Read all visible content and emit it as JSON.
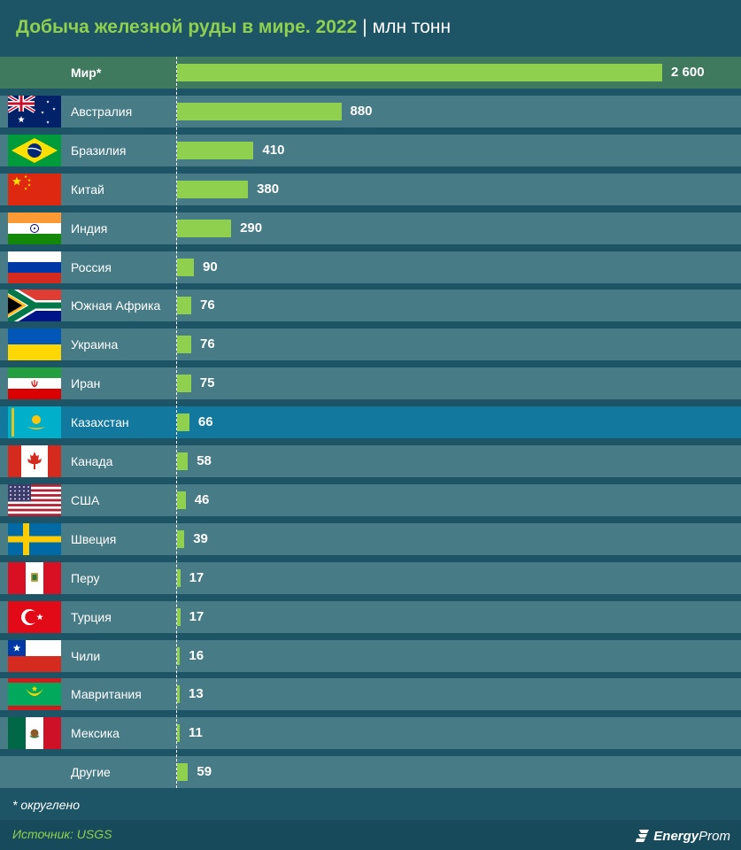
{
  "header": {
    "title": "Добыча железной руды в мире. 2022",
    "separator": "|",
    "unit": "млн тонн"
  },
  "colors": {
    "background": "#1d5566",
    "row": "#477b86",
    "world_row": "#3f7a5f",
    "highlight_row": "#13789e",
    "bar": "#8fd14f",
    "title": "#8fd14f"
  },
  "chart_data": {
    "type": "bar",
    "orientation": "horizontal",
    "title": "Добыча железной руды в мире. 2022",
    "unit": "млн тонн",
    "categories": [
      "Мир*",
      "Австралия",
      "Бразилия",
      "Китай",
      "Индия",
      "Россия",
      "Южная Африка",
      "Украина",
      "Иран",
      "Казахстан",
      "Канада",
      "США",
      "Швеция",
      "Перу",
      "Турция",
      "Чили",
      "Мавритания",
      "Мексика",
      "Другие"
    ],
    "values": [
      2600,
      880,
      410,
      380,
      290,
      90,
      76,
      76,
      75,
      66,
      58,
      46,
      39,
      17,
      17,
      16,
      13,
      11,
      59
    ],
    "value_labels": [
      "2 600",
      "880",
      "410",
      "380",
      "290",
      "90",
      "76",
      "76",
      "75",
      "66",
      "58",
      "46",
      "39",
      "17",
      "17",
      "16",
      "13",
      "11",
      "59"
    ],
    "flags": [
      "",
      "flag-australia",
      "flag-brazil",
      "flag-china",
      "flag-india",
      "flag-russia",
      "flag-south-africa",
      "flag-ukraine",
      "flag-iran",
      "flag-kazakhstan",
      "flag-canada",
      "flag-usa",
      "flag-sweden",
      "flag-peru",
      "flag-turkey",
      "flag-chile",
      "flag-mauritania",
      "flag-mexico",
      ""
    ],
    "highlight": "Казахстан",
    "xlim": [
      0,
      2600
    ],
    "grid": false,
    "legend": "none"
  },
  "footnote": "* округлено",
  "footer": {
    "source": "Источник: USGS",
    "brand_part1": "Energy",
    "brand_part2": "Prom"
  }
}
